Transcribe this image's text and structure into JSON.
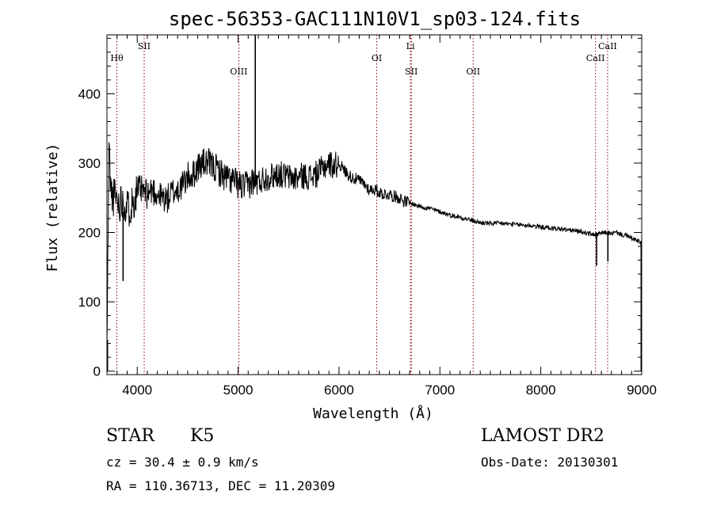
{
  "chart_data": {
    "type": "line",
    "title": "spec-56353-GAC111N10V1_sp03-124.fits",
    "xlabel": "Wavelength (Å)",
    "ylabel": "Flux (relative)",
    "xlim": [
      3700,
      9000
    ],
    "ylim": [
      -5,
      485
    ],
    "xticks": [
      4000,
      5000,
      6000,
      7000,
      8000,
      9000
    ],
    "yticks": [
      0,
      100,
      200,
      300,
      400
    ],
    "grid": false,
    "series": [
      {
        "x": [
          3700,
          3720,
          3740,
          3760,
          3780,
          3800,
          3820,
          3850,
          3880,
          3920,
          3960,
          4000,
          4050,
          4100,
          4150,
          4200,
          4250,
          4300,
          4350,
          4400,
          4450,
          4500,
          4550,
          4600,
          4650,
          4700,
          4750,
          4800,
          4850,
          4900,
          4950,
          5000,
          5050,
          5100,
          5150,
          5200,
          5250,
          5300,
          5350,
          5400,
          5450,
          5500,
          5550,
          5600,
          5650,
          5700,
          5750,
          5800,
          5850,
          5900,
          5950,
          6000,
          6050,
          6100,
          6150,
          6200,
          6250,
          6300,
          6350,
          6400,
          6450,
          6500,
          6550,
          6600,
          6650,
          6700,
          6750,
          6800,
          6850,
          6900,
          6950,
          7000,
          7100,
          7200,
          7300,
          7400,
          7500,
          7600,
          7700,
          7800,
          7900,
          8000,
          8100,
          8200,
          8300,
          8400,
          8500,
          8550,
          8600,
          8650,
          8700,
          8750,
          8800,
          8850,
          8900,
          8950,
          9000
        ],
        "y": [
          30,
          320,
          260,
          250,
          255,
          250,
          240,
          250,
          240,
          235,
          245,
          262,
          260,
          255,
          262,
          255,
          250,
          248,
          258,
          262,
          268,
          280,
          282,
          295,
          300,
          300,
          295,
          290,
          282,
          278,
          275,
          270,
          265,
          268,
          275,
          272,
          278,
          280,
          282,
          285,
          282,
          280,
          278,
          280,
          282,
          280,
          282,
          286,
          295,
          300,
          296,
          300,
          290,
          282,
          278,
          275,
          270,
          262,
          262,
          258,
          255,
          255,
          252,
          250,
          245,
          243,
          240,
          238,
          236,
          235,
          232,
          230,
          225,
          222,
          218,
          214,
          213,
          213,
          212,
          211,
          210,
          208,
          206,
          205,
          203,
          201,
          198,
          196,
          199,
          200,
          198,
          200,
          197,
          195,
          192,
          188,
          185
        ]
      }
    ],
    "spikes": [
      {
        "x": 5170,
        "from": 275,
        "to": 485
      },
      {
        "x": 3860,
        "from": 230,
        "to": 130
      },
      {
        "x": 8553,
        "from": 200,
        "to": 152
      },
      {
        "x": 8665,
        "from": 200,
        "to": 158
      },
      {
        "x": 3705,
        "from": 0,
        "to": 45
      },
      {
        "x": 8995,
        "from": 0,
        "to": 185
      }
    ],
    "lines": [
      {
        "label": "Hθ",
        "wavelength": 3798,
        "row": 2
      },
      {
        "label": "SII",
        "wavelength": 4069,
        "row": 1
      },
      {
        "label": "OIII",
        "wavelength": 5007,
        "row": 3
      },
      {
        "label": "OI",
        "wavelength": 6374,
        "row": 2
      },
      {
        "label": "Li",
        "wavelength": 6708,
        "row": 1
      },
      {
        "label": "SII",
        "wavelength": 6717,
        "row": 3
      },
      {
        "label": "OII",
        "wavelength": 7330,
        "row": 3
      },
      {
        "label": "CaII",
        "wavelength": 8542,
        "row": 2
      },
      {
        "label": "CaII",
        "wavelength": 8662,
        "row": 1
      }
    ]
  },
  "info": {
    "object_class": "STAR",
    "subclass": "K5",
    "survey": "LAMOST DR2",
    "cz": "cz = 30.4 ± 0.9 km/s",
    "obs_date": "Obs-Date: 20130301",
    "coords": "RA = 110.36713, DEC =  11.20309"
  },
  "colors": {
    "line_marker": "#8b0000",
    "spectrum": "#000000"
  }
}
